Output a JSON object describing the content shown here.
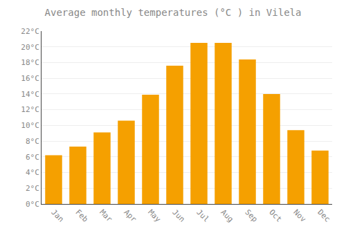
{
  "chart_data": {
    "type": "bar",
    "title": "Average monthly temperatures (°C ) in Vilela",
    "categories": [
      "Jan",
      "Feb",
      "Mar",
      "Apr",
      "May",
      "Jun",
      "Jul",
      "Aug",
      "Sep",
      "Oct",
      "Nov",
      "Dec"
    ],
    "values": [
      6.2,
      7.3,
      9.1,
      10.6,
      13.9,
      17.6,
      20.5,
      20.5,
      18.4,
      14.0,
      9.4,
      6.8
    ],
    "color": "#F5A000",
    "ylim": [
      0,
      22
    ],
    "yticks": [
      {
        "value": 0,
        "label": "0°C"
      },
      {
        "value": 2,
        "label": "2°C"
      },
      {
        "value": 4,
        "label": "4°C"
      },
      {
        "value": 6,
        "label": "6°C"
      },
      {
        "value": 8,
        "label": "8°C"
      },
      {
        "value": 10,
        "label": "10°C"
      },
      {
        "value": 12,
        "label": "12°C"
      },
      {
        "value": 14,
        "label": "14°C"
      },
      {
        "value": 16,
        "label": "16°C"
      },
      {
        "value": 18,
        "label": "18°C"
      },
      {
        "value": 20,
        "label": "20°C"
      },
      {
        "value": 22,
        "label": "22°C"
      }
    ],
    "grid": true
  }
}
